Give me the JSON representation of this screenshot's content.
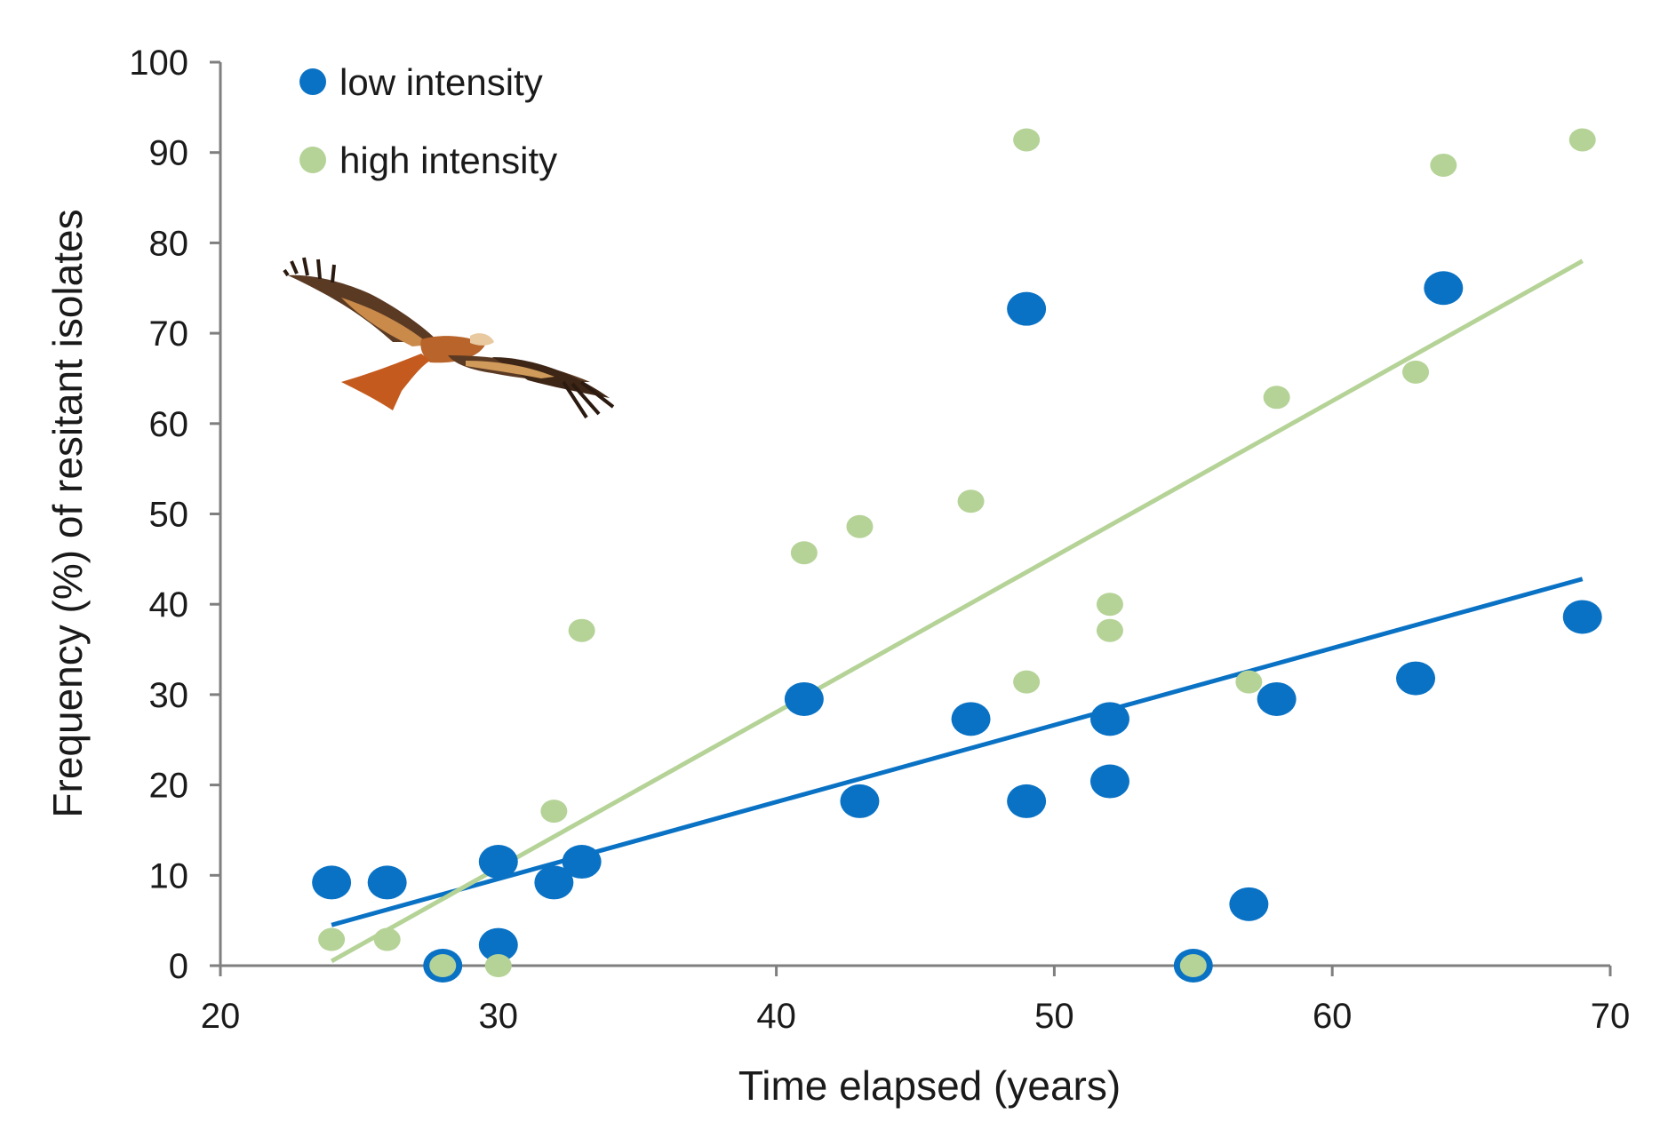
{
  "chart_data": {
    "type": "scatter",
    "xlabel": "Time elapsed (years)",
    "ylabel": "Frequency (%) of resitant isolates",
    "xlim": [
      20,
      70
    ],
    "ylim": [
      0,
      100
    ],
    "xticks": [
      "20",
      "30",
      "40",
      "50",
      "60",
      "70"
    ],
    "yticks": [
      "0",
      "10",
      "20",
      "30",
      "40",
      "50",
      "60",
      "70",
      "80",
      "90",
      "100"
    ],
    "legend_position": "top-left",
    "image": "red-kite-bird",
    "series": [
      {
        "name": "low intensity",
        "color": "#0a72c4",
        "points": [
          [
            24,
            9.2
          ],
          [
            26,
            9.2
          ],
          [
            28,
            0
          ],
          [
            30,
            11.5
          ],
          [
            30,
            2.3
          ],
          [
            32,
            9.2
          ],
          [
            33,
            11.5
          ],
          [
            41,
            29.5
          ],
          [
            43,
            18.2
          ],
          [
            47,
            27.3
          ],
          [
            49,
            72.7
          ],
          [
            49,
            18.2
          ],
          [
            52,
            27.3
          ],
          [
            52,
            20.4
          ],
          [
            55,
            0
          ],
          [
            57,
            6.8
          ],
          [
            58,
            29.5
          ],
          [
            63,
            31.8
          ],
          [
            64,
            75.0
          ],
          [
            69,
            38.6
          ]
        ],
        "trendline": [
          [
            24,
            4.5
          ],
          [
            69,
            42.8
          ]
        ]
      },
      {
        "name": "high intensity",
        "color": "#b5d397",
        "points": [
          [
            24,
            2.9
          ],
          [
            26,
            2.9
          ],
          [
            28,
            0
          ],
          [
            30,
            0
          ],
          [
            32,
            17.1
          ],
          [
            33,
            37.1
          ],
          [
            41,
            45.7
          ],
          [
            43,
            48.6
          ],
          [
            47,
            51.4
          ],
          [
            49,
            91.4
          ],
          [
            49,
            31.4
          ],
          [
            52,
            40.0
          ],
          [
            52,
            37.1
          ],
          [
            55,
            0
          ],
          [
            57,
            31.4
          ],
          [
            58,
            62.9
          ],
          [
            63,
            65.7
          ],
          [
            64,
            88.6
          ],
          [
            69,
            91.4
          ]
        ],
        "trendline": [
          [
            24,
            0.5
          ],
          [
            69,
            78.0
          ]
        ]
      }
    ]
  }
}
